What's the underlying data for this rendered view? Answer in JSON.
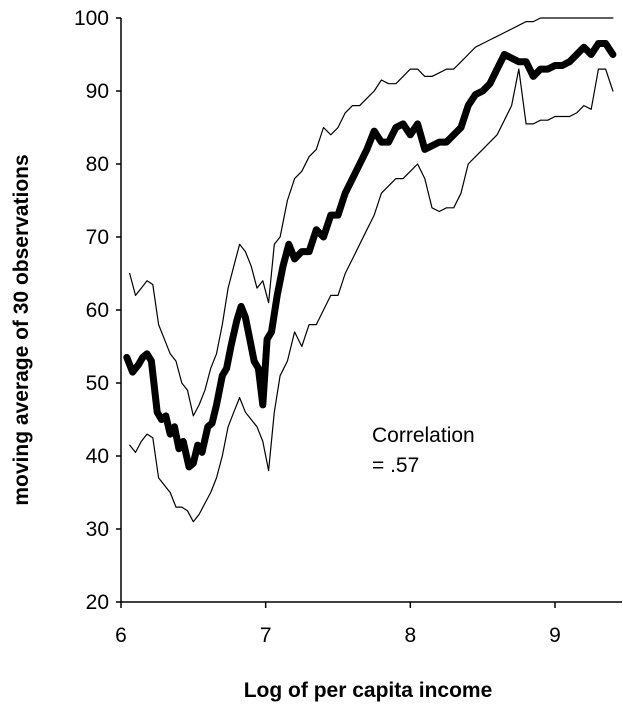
{
  "chart_data": {
    "type": "line",
    "title": "",
    "xlabel": "Log of per capita income",
    "ylabel": "moving average of 30 observations",
    "xlim": [
      6,
      9.45
    ],
    "ylim": [
      20,
      100
    ],
    "x_ticks": [
      "6",
      "7",
      "8",
      "9"
    ],
    "y_ticks": [
      "20",
      "30",
      "40",
      "50",
      "60",
      "70",
      "80",
      "90",
      "100"
    ],
    "grid": false,
    "annotation": [
      "Correlation",
      "= .57"
    ],
    "series": [
      {
        "role": "moving average",
        "stroke": "#000000",
        "weight": "thick",
        "x": [
          6.04,
          6.08,
          6.12,
          6.15,
          6.18,
          6.21,
          6.25,
          6.28,
          6.31,
          6.34,
          6.37,
          6.4,
          6.43,
          6.47,
          6.5,
          6.53,
          6.56,
          6.6,
          6.63,
          6.66,
          6.7,
          6.73,
          6.76,
          6.8,
          6.83,
          6.86,
          6.89,
          6.92,
          6.95,
          6.98,
          7.01,
          7.04,
          7.08,
          7.12,
          7.16,
          7.2,
          7.25,
          7.3,
          7.35,
          7.4,
          7.45,
          7.5,
          7.55,
          7.6,
          7.65,
          7.7,
          7.75,
          7.8,
          7.85,
          7.9,
          7.95,
          8.0,
          8.05,
          8.1,
          8.15,
          8.2,
          8.25,
          8.3,
          8.35,
          8.4,
          8.45,
          8.5,
          8.55,
          8.6,
          8.65,
          8.7,
          8.75,
          8.8,
          8.85,
          8.9,
          8.95,
          9.0,
          9.05,
          9.1,
          9.15,
          9.2,
          9.25,
          9.3,
          9.35,
          9.4
        ],
        "y": [
          53.5,
          51.5,
          52.5,
          53.5,
          54.0,
          53.0,
          46.0,
          45.0,
          45.5,
          43.0,
          44.0,
          41.0,
          42.0,
          38.5,
          39.0,
          41.5,
          40.5,
          44.0,
          44.5,
          47.0,
          51.0,
          52.0,
          55.0,
          58.5,
          60.5,
          59.0,
          56.0,
          53.0,
          52.0,
          47.0,
          56.0,
          57.0,
          62.0,
          66.0,
          69.0,
          67.0,
          68.0,
          68.0,
          71.0,
          70.0,
          73.0,
          73.0,
          76.0,
          78.0,
          80.0,
          82.0,
          84.5,
          83.0,
          83.0,
          85.0,
          85.5,
          84.0,
          85.5,
          82.0,
          82.5,
          83.0,
          83.0,
          84.0,
          85.0,
          88.0,
          89.5,
          90.0,
          91.0,
          93.0,
          95.0,
          94.5,
          94.0,
          94.0,
          92.0,
          93.0,
          93.0,
          93.5,
          93.5,
          94.0,
          95.0,
          96.0,
          95.0,
          96.5,
          96.5,
          95.0
        ]
      },
      {
        "role": "upper band",
        "stroke": "#000000",
        "weight": "thin",
        "x": [
          6.06,
          6.1,
          6.14,
          6.18,
          6.22,
          6.26,
          6.3,
          6.34,
          6.38,
          6.42,
          6.46,
          6.5,
          6.54,
          6.58,
          6.62,
          6.66,
          6.7,
          6.74,
          6.78,
          6.82,
          6.86,
          6.9,
          6.94,
          6.98,
          7.02,
          7.06,
          7.1,
          7.15,
          7.2,
          7.25,
          7.3,
          7.35,
          7.4,
          7.45,
          7.5,
          7.55,
          7.6,
          7.65,
          7.7,
          7.75,
          7.8,
          7.85,
          7.9,
          7.95,
          8.0,
          8.05,
          8.1,
          8.15,
          8.2,
          8.25,
          8.3,
          8.35,
          8.4,
          8.45,
          8.5,
          8.55,
          8.6,
          8.65,
          8.7,
          8.75,
          8.8,
          8.85,
          8.9,
          8.95,
          9.0,
          9.05,
          9.1,
          9.15,
          9.2,
          9.25,
          9.3,
          9.35,
          9.4
        ],
        "y": [
          65.0,
          62.0,
          63.0,
          64.0,
          63.5,
          58.0,
          56.0,
          54.0,
          53.0,
          50.0,
          49.0,
          45.5,
          47.0,
          49.0,
          52.0,
          54.0,
          58.0,
          63.0,
          66.0,
          69.0,
          68.0,
          66.0,
          63.0,
          64.0,
          61.0,
          69.0,
          70.0,
          75.0,
          78.0,
          79.0,
          81.0,
          82.0,
          85.0,
          84.0,
          85.0,
          87.0,
          88.0,
          88.0,
          89.0,
          90.0,
          91.5,
          91.0,
          91.0,
          92.0,
          93.0,
          93.0,
          92.0,
          92.0,
          92.5,
          93.0,
          93.0,
          94.0,
          95.0,
          96.0,
          96.5,
          97.0,
          97.5,
          98.0,
          98.5,
          99.0,
          99.5,
          99.5,
          100.0,
          100.0,
          100.0,
          100.0,
          100.0,
          100.0,
          100.0,
          100.0,
          100.0,
          100.0,
          100.0
        ]
      },
      {
        "role": "lower band",
        "stroke": "#000000",
        "weight": "thin",
        "x": [
          6.06,
          6.1,
          6.14,
          6.18,
          6.22,
          6.26,
          6.3,
          6.34,
          6.38,
          6.42,
          6.46,
          6.5,
          6.54,
          6.58,
          6.62,
          6.66,
          6.7,
          6.74,
          6.78,
          6.82,
          6.86,
          6.9,
          6.94,
          6.98,
          7.02,
          7.06,
          7.1,
          7.15,
          7.2,
          7.25,
          7.3,
          7.35,
          7.4,
          7.45,
          7.5,
          7.55,
          7.6,
          7.65,
          7.7,
          7.75,
          7.8,
          7.85,
          7.9,
          7.95,
          8.0,
          8.05,
          8.1,
          8.15,
          8.2,
          8.25,
          8.3,
          8.35,
          8.4,
          8.45,
          8.5,
          8.55,
          8.6,
          8.65,
          8.7,
          8.75,
          8.8,
          8.85,
          8.9,
          8.95,
          9.0,
          9.05,
          9.1,
          9.15,
          9.2,
          9.25,
          9.3,
          9.35,
          9.4
        ],
        "y": [
          41.5,
          40.5,
          42.0,
          43.0,
          42.5,
          37.0,
          36.0,
          35.0,
          33.0,
          33.0,
          32.5,
          31.0,
          32.0,
          33.5,
          35.0,
          37.0,
          40.0,
          44.0,
          46.0,
          48.0,
          46.0,
          45.0,
          44.0,
          42.0,
          38.0,
          46.0,
          51.0,
          53.0,
          57.0,
          55.0,
          58.0,
          58.0,
          60.0,
          62.0,
          62.0,
          65.0,
          67.0,
          69.0,
          71.0,
          73.0,
          76.0,
          77.0,
          78.0,
          78.0,
          79.0,
          80.0,
          78.0,
          74.0,
          73.5,
          74.0,
          74.0,
          76.0,
          80.0,
          81.0,
          82.0,
          83.0,
          84.0,
          86.0,
          88.0,
          93.0,
          85.5,
          85.5,
          86.0,
          86.0,
          86.5,
          86.5,
          86.5,
          87.0,
          88.0,
          87.5,
          93.0,
          93.0,
          90.0
        ]
      }
    ]
  }
}
